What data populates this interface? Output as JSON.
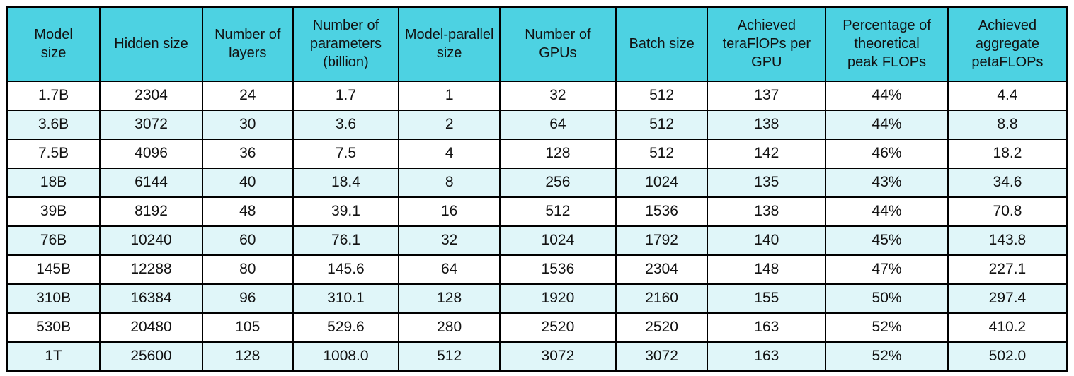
{
  "chart_data": {
    "type": "table",
    "columns": [
      "Model size",
      "Hidden size",
      "Number of layers",
      "Number of parameters (billion)",
      "Model-parallel size",
      "Number of GPUs",
      "Batch size",
      "Achieved teraFlOPs per GPU",
      "Percentage of theoretical peak FLOPs",
      "Achieved aggregate petaFLOPs"
    ],
    "rows": [
      [
        "1.7B",
        "2304",
        "24",
        "1.7",
        "1",
        "32",
        "512",
        "137",
        "44%",
        "4.4"
      ],
      [
        "3.6B",
        "3072",
        "30",
        "3.6",
        "2",
        "64",
        "512",
        "138",
        "44%",
        "8.8"
      ],
      [
        "7.5B",
        "4096",
        "36",
        "7.5",
        "4",
        "128",
        "512",
        "142",
        "46%",
        "18.2"
      ],
      [
        "18B",
        "6144",
        "40",
        "18.4",
        "8",
        "256",
        "1024",
        "135",
        "43%",
        "34.6"
      ],
      [
        "39B",
        "8192",
        "48",
        "39.1",
        "16",
        "512",
        "1536",
        "138",
        "44%",
        "70.8"
      ],
      [
        "76B",
        "10240",
        "60",
        "76.1",
        "32",
        "1024",
        "1792",
        "140",
        "45%",
        "143.8"
      ],
      [
        "145B",
        "12288",
        "80",
        "145.6",
        "64",
        "1536",
        "2304",
        "148",
        "47%",
        "227.1"
      ],
      [
        "310B",
        "16384",
        "96",
        "310.1",
        "128",
        "1920",
        "2160",
        "155",
        "50%",
        "297.4"
      ],
      [
        "530B",
        "20480",
        "105",
        "529.6",
        "280",
        "2520",
        "2520",
        "163",
        "52%",
        "410.2"
      ],
      [
        "1T",
        "25600",
        "128",
        "1008.0",
        "512",
        "3072",
        "3072",
        "163",
        "52%",
        "502.0"
      ]
    ]
  },
  "table": {
    "header_display": [
      "Model\nsize",
      "Hidden size",
      "Number of\nlayers",
      "Number of\nparameters\n(billion)",
      "Model-parallel\nsize",
      "Number of\nGPUs",
      "Batch size",
      "Achieved\nteraFlOPs per\nGPU",
      "Percentage of\ntheoretical\npeak FLOPs",
      "Achieved\naggregate\npetaFLOPs"
    ],
    "colors": {
      "header_bg": "#4dd2e2",
      "alt_row_bg": "#e0f6f9",
      "row_bg": "#ffffff",
      "border": "#000000",
      "text": "#121212"
    }
  }
}
